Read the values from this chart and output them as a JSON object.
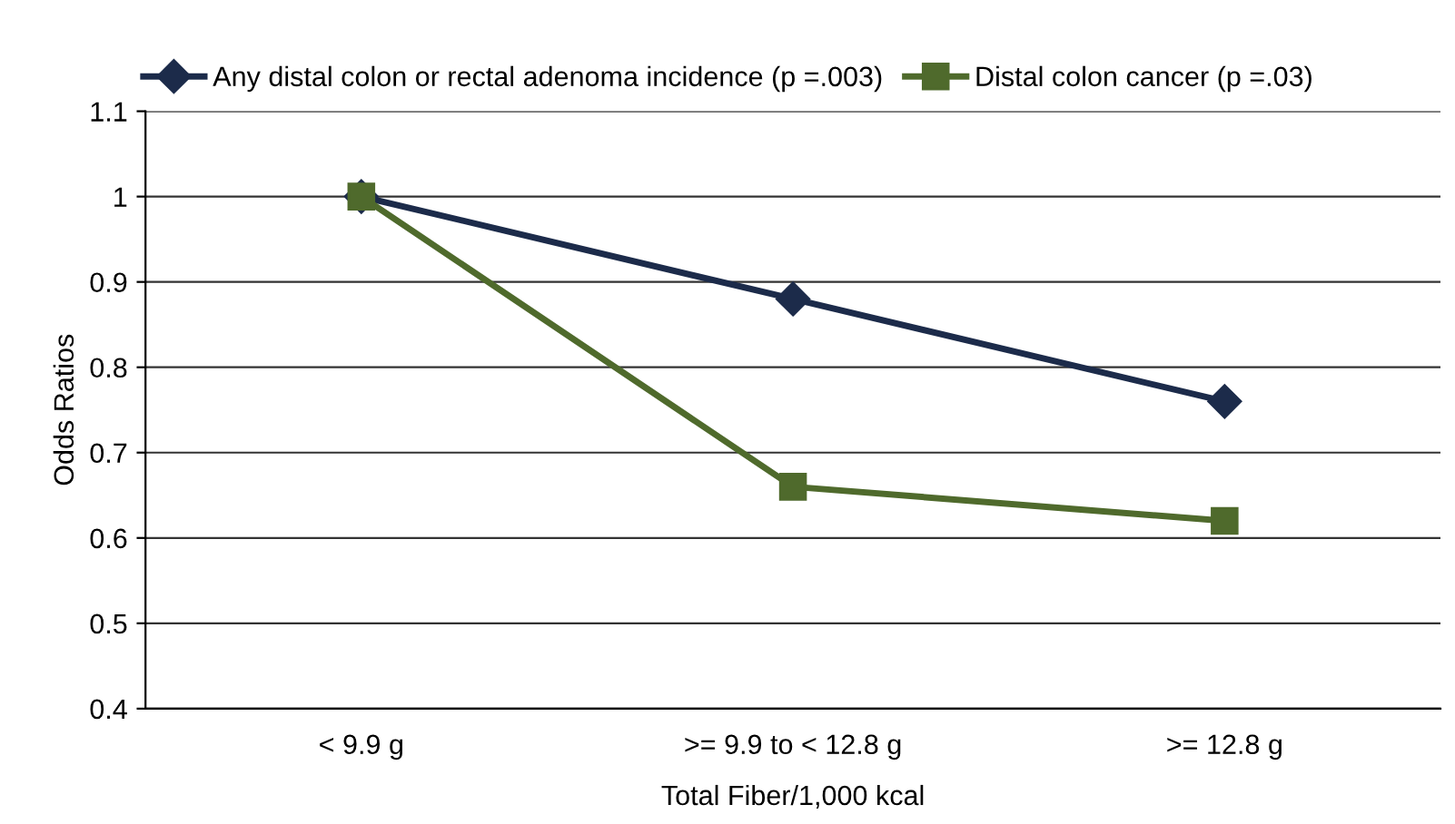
{
  "chart_data": {
    "type": "line",
    "xlabel": "Total Fiber/1,000 kcal",
    "ylabel": "Odds Ratios",
    "categories": [
      "< 9.9 g",
      ">= 9.9 to < 12.8 g",
      ">= 12.8 g"
    ],
    "series": [
      {
        "name": "Any distal colon or rectal adenoma incidence (p =.003)",
        "color": "#1c2b4a",
        "marker": "diamond",
        "values": [
          1,
          0.88,
          0.76
        ]
      },
      {
        "name": "Distal colon cancer (p =.03)",
        "color": "#4f6a2c",
        "marker": "square",
        "values": [
          1,
          0.66,
          0.62
        ]
      }
    ],
    "ylim": [
      0.4,
      1.1
    ],
    "yticks": [
      0.4,
      0.5,
      0.6,
      0.7,
      0.8,
      0.9,
      1,
      1.1
    ],
    "grid": "y",
    "legend": "top",
    "line_style": "solid"
  }
}
